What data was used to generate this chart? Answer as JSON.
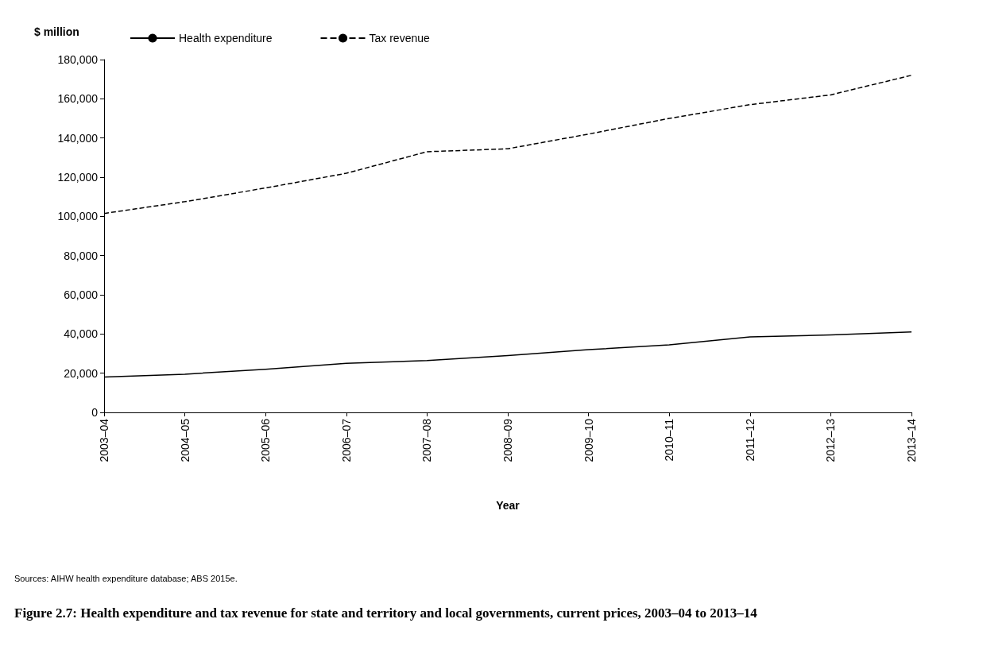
{
  "chart_data": {
    "type": "line",
    "title": "Figure 2.7: Health expenditure and tax revenue for state and territory and local governments, current prices, 2003–04 to 2013–14",
    "xlabel": "Year",
    "ylabel": "$ million",
    "annotations": [
      "Sources: AIHW health expenditure database; ABS 2015e."
    ],
    "categories": [
      "2003–04",
      "2004–05",
      "2005–06",
      "2006–07",
      "2007–08",
      "2008–09",
      "2009–10",
      "2010–11",
      "2011–12",
      "2012–13",
      "2013–14"
    ],
    "series": [
      {
        "name": "Health expenditure",
        "color": "#000000",
        "line_style": "solid",
        "values": [
          18000,
          19500,
          22000,
          25000,
          26500,
          29000,
          32000,
          34500,
          38500,
          39500,
          41000
        ]
      },
      {
        "name": "Tax revenue",
        "color": "#000000",
        "line_style": "dashed",
        "values": [
          101500,
          107500,
          114500,
          122000,
          133000,
          134500,
          142000,
          150000,
          157000,
          162000,
          172000
        ]
      }
    ],
    "ylim": [
      0,
      180000
    ],
    "yticks": [
      0,
      {
        "value": 20000,
        "label": "20,000"
      },
      {
        "value": 40000,
        "label": "40,000"
      },
      {
        "value": 60000,
        "label": "60,000"
      },
      {
        "value": 80000,
        "label": "80,000"
      },
      {
        "value": 100000,
        "label": "100,000"
      },
      {
        "value": 120000,
        "label": "120,000"
      },
      {
        "value": 140000,
        "label": "140,000"
      },
      {
        "value": 160000,
        "label": "160,000"
      },
      {
        "value": 180000,
        "label": "180,000"
      }
    ],
    "grid": false,
    "legend": "top left",
    "marker": "none"
  }
}
